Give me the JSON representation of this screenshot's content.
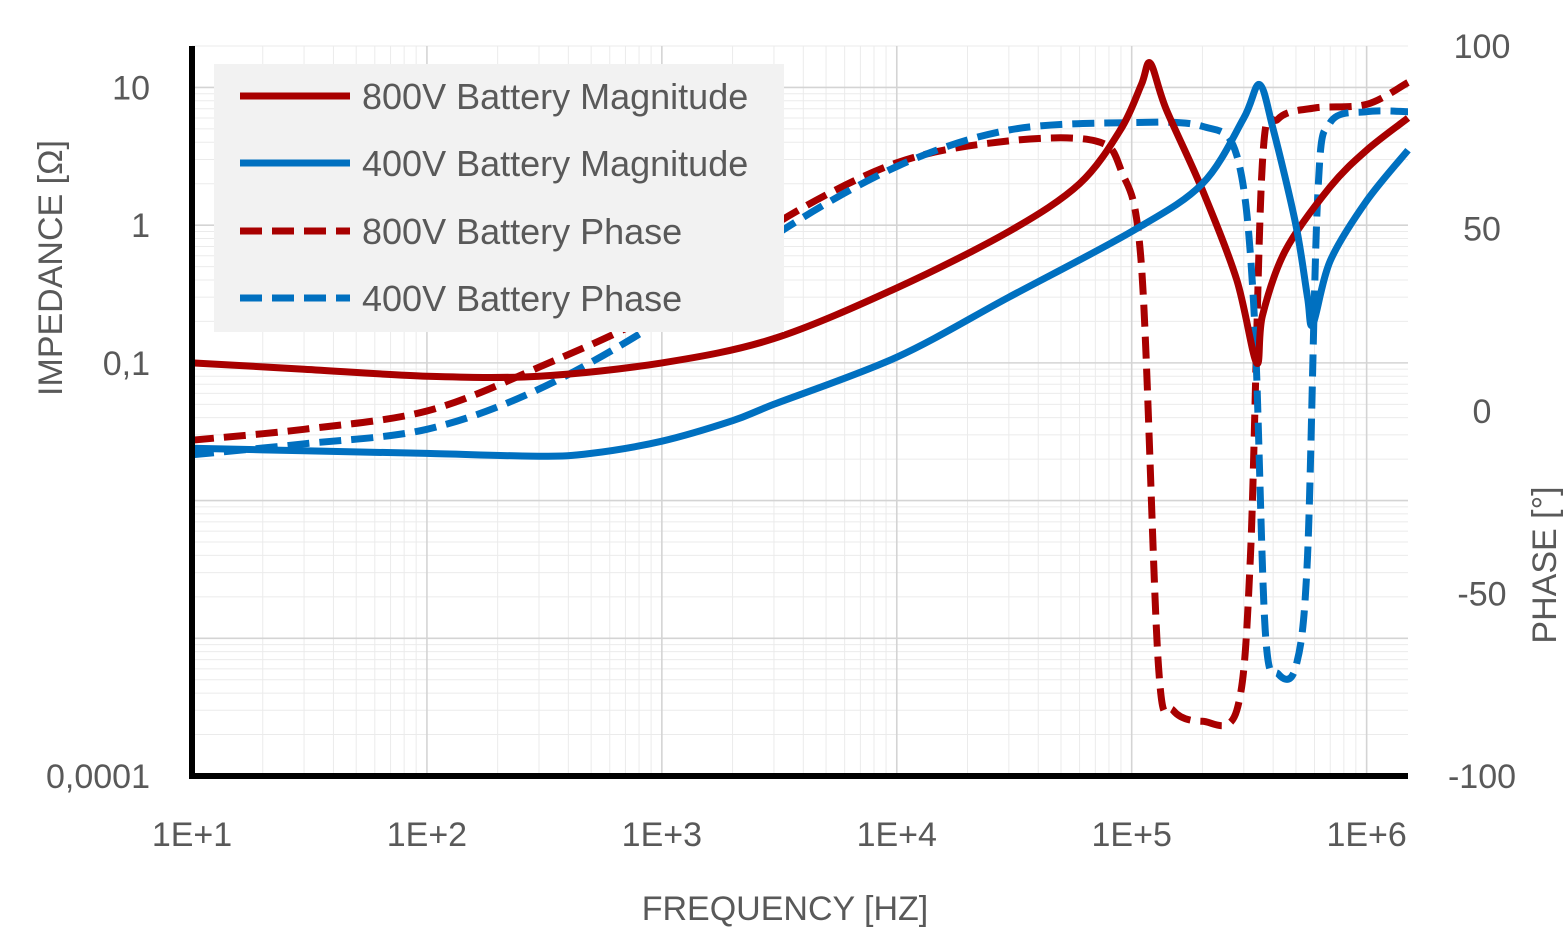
{
  "chart_data": {
    "type": "line",
    "xlabel": "FREQUENCY [HZ]",
    "ylabel": "IMPEDANCE [Ω]",
    "y2label": "PHASE [°]",
    "x_scale": "log",
    "y_scale": "log",
    "xlim": [
      10,
      1500000
    ],
    "ylim": [
      0.0001,
      20
    ],
    "y2lim": [
      -100,
      100
    ],
    "x_ticks": [
      10,
      100,
      1000,
      10000,
      100000,
      1000000
    ],
    "x_tick_labels": [
      "1E+1",
      "1E+2",
      "1E+3",
      "1E+4",
      "1E+5",
      "1E+6"
    ],
    "y_ticks": [
      10,
      1,
      0.1,
      0.0001
    ],
    "y_tick_labels": [
      "10",
      "1",
      "0,1",
      "0,0001"
    ],
    "y2_ticks": [
      100,
      50,
      0,
      -50,
      -100
    ],
    "y2_tick_labels": [
      "100",
      "50",
      "0",
      "-50",
      "-100"
    ],
    "grid": true,
    "legend_position": "top-left",
    "colors": {
      "red": "#a80000",
      "blue": "#0070c0"
    },
    "series": [
      {
        "name": "800V Battery Magnitude",
        "axis": "left",
        "style": "solid",
        "color": "#a80000",
        "x": [
          10,
          30,
          100,
          300,
          1000,
          3000,
          10000,
          30000,
          60000,
          90000,
          110000,
          120000,
          140000,
          200000,
          280000,
          340000,
          360000,
          450000,
          700000,
          1000000,
          1500000
        ],
        "y": [
          0.1,
          0.09,
          0.08,
          0.08,
          0.1,
          0.15,
          0.35,
          0.9,
          2.0,
          5.0,
          10.5,
          15.0,
          7.0,
          1.8,
          0.4,
          0.1,
          0.22,
          0.65,
          1.9,
          3.5,
          6.0
        ]
      },
      {
        "name": "400V Battery Magnitude",
        "axis": "left",
        "style": "solid",
        "color": "#0070c0",
        "x": [
          10,
          30,
          100,
          300,
          500,
          1000,
          2000,
          3000,
          10000,
          30000,
          100000,
          200000,
          300000,
          350000,
          400000,
          500000,
          560000,
          590000,
          700000,
          1000000,
          1500000
        ],
        "y": [
          0.024,
          0.023,
          0.022,
          0.021,
          0.022,
          0.027,
          0.038,
          0.05,
          0.11,
          0.3,
          0.9,
          2.0,
          6.0,
          10.5,
          5.0,
          1.0,
          0.3,
          0.19,
          0.55,
          1.5,
          3.5
        ]
      },
      {
        "name": "800V Battery Phase",
        "axis": "right",
        "style": "dashed",
        "color": "#a80000",
        "x": [
          10,
          30,
          100,
          300,
          1000,
          3000,
          10000,
          30000,
          70000,
          90000,
          110000,
          130000,
          150000,
          200000,
          280000,
          320000,
          360000,
          420000,
          600000,
          1000000,
          1500000
        ],
        "y": [
          -8,
          -5,
          0,
          12,
          28,
          51,
          68,
          74,
          74,
          66,
          40,
          -70,
          -82,
          -85,
          -82,
          -40,
          68,
          80,
          83,
          84,
          90
        ]
      },
      {
        "name": "400V Battery Phase",
        "axis": "right",
        "style": "dashed",
        "color": "#0070c0",
        "x": [
          10,
          30,
          100,
          300,
          1000,
          3000,
          10000,
          30000,
          100000,
          200000,
          280000,
          330000,
          370000,
          420000,
          500000,
          560000,
          620000,
          700000,
          1000000,
          1500000
        ],
        "y": [
          -12,
          -9,
          -5,
          6,
          25,
          48,
          67,
          77,
          79,
          78,
          70,
          30,
          -60,
          -72,
          -70,
          -40,
          60,
          79,
          82,
          82
        ]
      }
    ]
  }
}
